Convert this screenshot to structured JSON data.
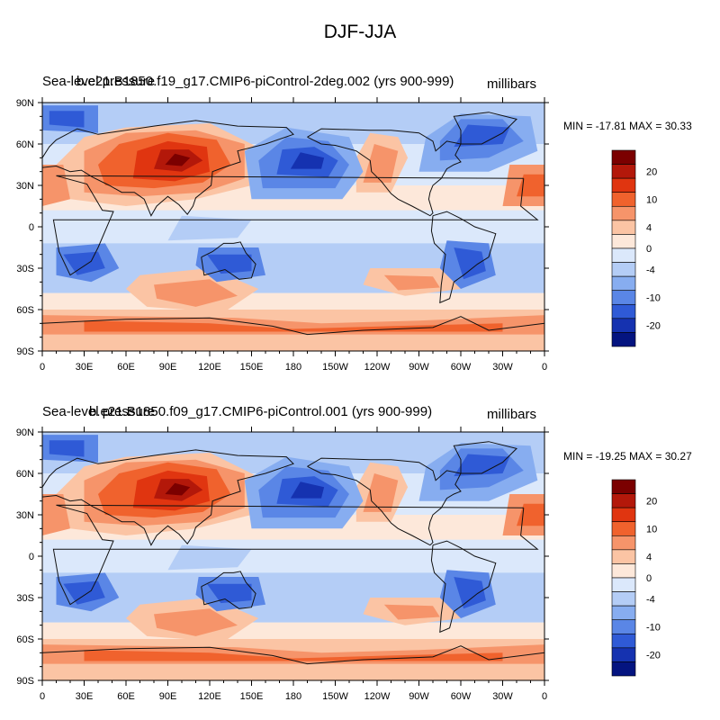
{
  "figure_title": "DJF-JJA",
  "panels": [
    {
      "variable": "Sea-level pressure",
      "case": "b.e21.B1850.f19_g17.CMIP6-piControl-2deg.002 (yrs 900-999)",
      "units": "millibars",
      "stats": "MIN = -17.81 MAX =  30.33",
      "min": -17.81,
      "max": 30.33
    },
    {
      "variable": "Sea-level pressure",
      "case": "b.e21.B1850.f09_g17.CMIP6-piControl.001 (yrs 900-999)",
      "units": "millibars",
      "stats": "MIN = -19.25 MAX =  30.27",
      "min": -19.25,
      "max": 30.27
    }
  ],
  "axes": {
    "lat_ticks": [
      "90N",
      "60N",
      "30N",
      "0",
      "30S",
      "60S",
      "90S"
    ],
    "lon_ticks": [
      "0",
      "30E",
      "60E",
      "90E",
      "120E",
      "150E",
      "180",
      "150W",
      "120W",
      "90W",
      "60W",
      "30W",
      "0"
    ]
  },
  "colorbar": {
    "labels": [
      "20",
      "10",
      "4",
      "0",
      "-4",
      "-10",
      "-20"
    ],
    "colors": [
      "#7b0000",
      "#b3180a",
      "#e03510",
      "#f0622d",
      "#f6946a",
      "#fbc4a4",
      "#fde8da",
      "#dbe8fb",
      "#b4cdf6",
      "#87adf0",
      "#5a86e6",
      "#2f5ad6",
      "#1532b0",
      "#041480"
    ]
  }
}
